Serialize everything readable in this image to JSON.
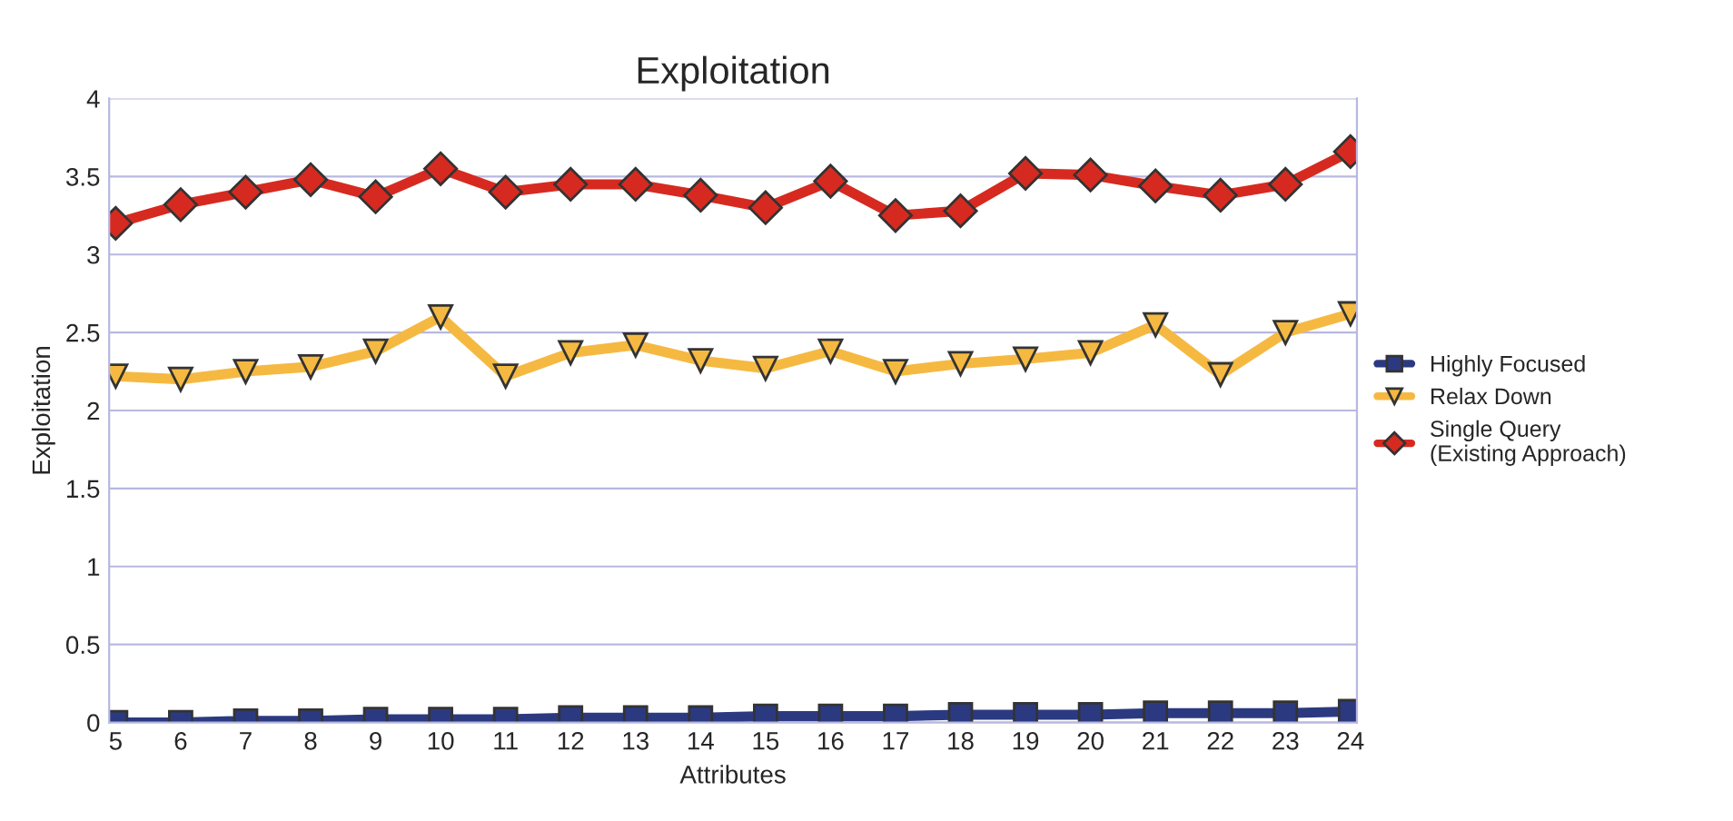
{
  "chart_data": {
    "type": "line",
    "title": "Exploitation",
    "xlabel": "Attributes",
    "ylabel": "Exploitation",
    "categories": [
      "5",
      "6",
      "7",
      "8",
      "9",
      "10",
      "11",
      "12",
      "13",
      "14",
      "15",
      "16",
      "17",
      "18",
      "19",
      "20",
      "21",
      "22",
      "23",
      "24"
    ],
    "series": [
      {
        "name": "Highly Focused",
        "color": "#2b3a80",
        "marker": "square",
        "values": [
          0.0,
          0.0,
          0.01,
          0.01,
          0.02,
          0.02,
          0.02,
          0.03,
          0.03,
          0.03,
          0.04,
          0.04,
          0.04,
          0.05,
          0.05,
          0.05,
          0.06,
          0.06,
          0.06,
          0.07
        ]
      },
      {
        "name": "Relax Down",
        "color": "#f5b942",
        "marker": "triangle",
        "values": [
          2.22,
          2.2,
          2.25,
          2.28,
          2.38,
          2.6,
          2.22,
          2.37,
          2.42,
          2.32,
          2.27,
          2.38,
          2.25,
          2.3,
          2.33,
          2.37,
          2.55,
          2.23,
          2.5,
          2.62
        ]
      },
      {
        "name": "Single Query (Existing Approach)",
        "color": "#d62a20",
        "marker": "diamond",
        "values": [
          3.2,
          3.32,
          3.4,
          3.48,
          3.37,
          3.55,
          3.4,
          3.45,
          3.45,
          3.38,
          3.3,
          3.47,
          3.25,
          3.28,
          3.52,
          3.51,
          3.44,
          3.38,
          3.45,
          3.66
        ]
      }
    ],
    "ylim": [
      0,
      4
    ],
    "yticks": [
      0,
      0.5,
      1,
      1.5,
      2,
      2.5,
      3,
      3.5,
      4
    ],
    "grid": "y",
    "legend": "right",
    "line_style": "solid"
  }
}
